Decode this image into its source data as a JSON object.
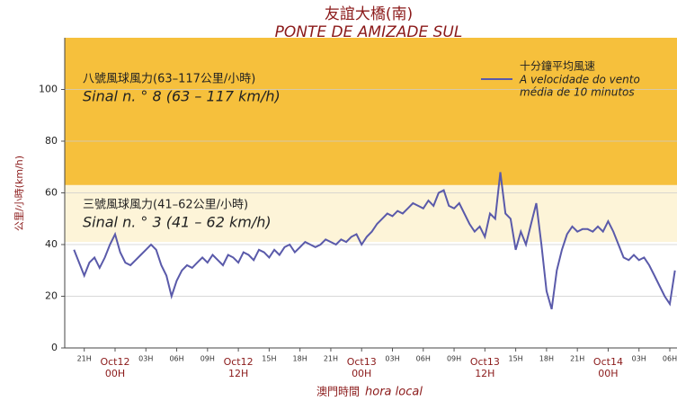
{
  "chart_data": {
    "type": "line",
    "title": "友誼大橋(南)",
    "subtitle": "PONTE DE AMIZADE SUL",
    "y_label": "公里/小時(km/h)",
    "x_label": "澳門時間",
    "x_label_pt": "hora local",
    "xlim": [
      -4.9,
      54.7
    ],
    "ylim": [
      0,
      120
    ],
    "yticks": [
      0,
      20,
      40,
      60,
      80,
      100
    ],
    "grid": true,
    "xticks": [
      {
        "value": -3,
        "label": "21H"
      },
      {
        "value": 0,
        "label": "Oct12 00H"
      },
      {
        "value": 3,
        "label": "03H"
      },
      {
        "value": 6,
        "label": "06H"
      },
      {
        "value": 9,
        "label": "09H"
      },
      {
        "value": 12,
        "label": "Oct12 12H"
      },
      {
        "value": 15,
        "label": "15H"
      },
      {
        "value": 18,
        "label": "18H"
      },
      {
        "value": 21,
        "label": "21H"
      },
      {
        "value": 24,
        "label": "Oct13 00H"
      },
      {
        "value": 27,
        "label": "03H"
      },
      {
        "value": 30,
        "label": "06H"
      },
      {
        "value": 33,
        "label": "09H"
      },
      {
        "value": 36,
        "label": "Oct13 12H"
      },
      {
        "value": 39,
        "label": "15H"
      },
      {
        "value": 42,
        "label": "18H"
      },
      {
        "value": 45,
        "label": "21H"
      },
      {
        "value": 48,
        "label": "Oct14 00H"
      },
      {
        "value": 51,
        "label": "03H"
      },
      {
        "value": 54,
        "label": "06H"
      }
    ],
    "bands": [
      {
        "from": 63,
        "to": 120,
        "color": "#f6c03c",
        "label": "八號風球風力(63–117公里/小時)",
        "label_pt": "Sinal n. ° 8 (63 – 117 km/h)"
      },
      {
        "from": 41,
        "to": 63,
        "color": "#fdf4d8",
        "label": "三號風球風力(41–62公里/小時)",
        "label_pt": "Sinal n. ° 3 (41 – 62 km/h)"
      }
    ],
    "legend_lines": [
      "A velocidade do vento",
      "média de 10 minutos"
    ],
    "series": [
      {
        "name": "十分鐘平均風速",
        "color": "#5a5aaa",
        "x": [
          -4,
          -3.5,
          -3,
          -2.5,
          -2,
          -1.5,
          -1,
          -0.5,
          0,
          0.5,
          1,
          1.5,
          2,
          2.5,
          3,
          3.5,
          4,
          4.5,
          5,
          5.5,
          6,
          6.5,
          7,
          7.5,
          8,
          8.5,
          9,
          9.5,
          10,
          10.5,
          11,
          11.5,
          12,
          12.5,
          13,
          13.5,
          14,
          14.5,
          15,
          15.5,
          16,
          16.5,
          17,
          17.5,
          18,
          18.5,
          19,
          19.5,
          20,
          20.5,
          21,
          21.5,
          22,
          22.5,
          23,
          23.5,
          24,
          24.5,
          25,
          25.5,
          26,
          26.5,
          27,
          27.5,
          28,
          28.5,
          29,
          29.5,
          30,
          30.5,
          31,
          31.5,
          32,
          32.5,
          33,
          33.5,
          34,
          34.5,
          35,
          35.5,
          36,
          36.5,
          37,
          37.5,
          38,
          38.5,
          39,
          39.5,
          40,
          40.5,
          41,
          41.5,
          42,
          42.5,
          43,
          43.5,
          44,
          44.5,
          45,
          45.5,
          46,
          46.5,
          47,
          47.5,
          48,
          48.5,
          49,
          49.5,
          50,
          50.5,
          51,
          51.5,
          52,
          52.5,
          53,
          53.5,
          54,
          54.5
        ],
        "values": [
          38,
          33,
          28,
          33,
          35,
          31,
          35,
          40,
          44,
          37,
          33,
          32,
          34,
          36,
          38,
          40,
          38,
          32,
          28,
          20,
          26,
          30,
          32,
          31,
          33,
          35,
          33,
          36,
          34,
          32,
          36,
          35,
          33,
          37,
          36,
          34,
          38,
          37,
          35,
          38,
          36,
          39,
          40,
          37,
          39,
          41,
          40,
          39,
          40,
          42,
          41,
          40,
          42,
          41,
          43,
          44,
          40,
          43,
          45,
          48,
          50,
          52,
          51,
          53,
          52,
          54,
          56,
          55,
          54,
          57,
          55,
          60,
          61,
          55,
          54,
          56,
          52,
          48,
          45,
          47,
          43,
          52,
          50,
          68,
          52,
          50,
          38,
          45,
          40,
          48,
          56,
          40,
          22,
          15,
          30,
          38,
          44,
          47,
          45,
          46,
          46,
          45,
          47,
          45,
          49,
          45,
          40,
          35,
          34,
          36,
          34,
          35,
          32,
          28,
          24,
          20,
          17,
          30
        ]
      }
    ]
  }
}
